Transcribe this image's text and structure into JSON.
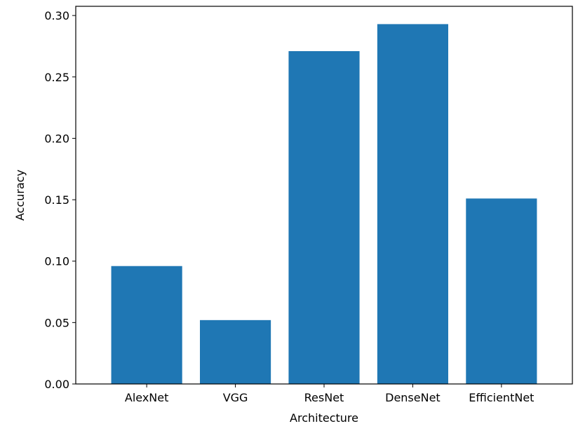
{
  "chart_data": {
    "type": "bar",
    "title": "",
    "xlabel": "Architecture",
    "ylabel": "Accuracy",
    "categories": [
      "AlexNet",
      "VGG",
      "ResNet",
      "DenseNet",
      "EfficientNet"
    ],
    "values": [
      0.096,
      0.052,
      0.271,
      0.293,
      0.151
    ],
    "ylim": [
      0,
      0.3075
    ],
    "yticks": [
      0.0,
      0.05,
      0.1,
      0.15,
      0.2,
      0.25,
      0.3
    ],
    "ytick_labels": [
      "0.00",
      "0.05",
      "0.10",
      "0.15",
      "0.20",
      "0.25",
      "0.30"
    ],
    "grid": false,
    "bar_color": "#1f77b4"
  }
}
